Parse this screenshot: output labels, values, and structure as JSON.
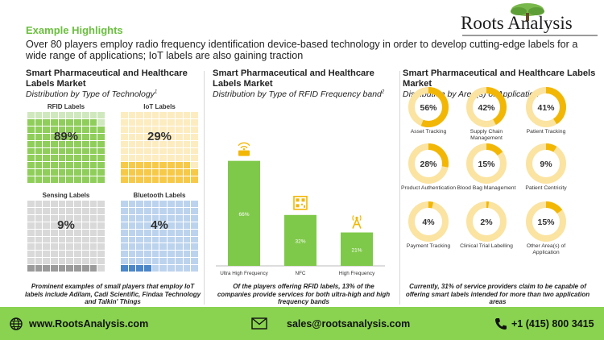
{
  "header": {
    "kicker": "Example Highlights",
    "headline": "Over 80 players employ radio frequency identification device-based technology in order to develop cutting-edge labels for a wide range of applications; IoT labels are also gaining traction"
  },
  "logo": {
    "text": "Roots Analysis",
    "icon": "tree-icon"
  },
  "panel1": {
    "title": "Smart Pharmaceutical and Healthcare Labels Market",
    "subtitle": "Distribution by Type of Technology",
    "note": "1",
    "waffles": [
      {
        "label": "RFID Labels",
        "value_text": "89%",
        "value": 89,
        "fill_color": "#8fce5a",
        "empty_color": "#cfe8bd"
      },
      {
        "label": "IoT Labels",
        "value_text": "29%",
        "value": 29,
        "fill_color": "#f7c948",
        "empty_color": "#fcecc0"
      },
      {
        "label": "Sensing Labels",
        "value_text": "9%",
        "value": 9,
        "fill_color": "#9a9a9a",
        "empty_color": "#d9d9d9"
      },
      {
        "label": "Bluetooth  Labels",
        "value_text": "4%",
        "value": 4,
        "fill_color": "#4a86c8",
        "empty_color": "#bcd3ee"
      }
    ],
    "footnote": "Prominent examples of small players that employ IoT labels include Adilam, Cadi Scientific, Findaa Technology and Talkin' Things"
  },
  "panel2": {
    "title": "Smart Pharmaceutical and Healthcare Labels Market",
    "subtitle": "Distribution by Type of RFID Frequency band",
    "note": "2",
    "footnote": "Of the players offering RFID labels, 13% of the companies provide services for both ultra-high and high frequency bands"
  },
  "chart_data": {
    "type": "bar",
    "categories": [
      "Ultra High Frequency",
      "NFC",
      "High Frequency"
    ],
    "values": [
      66,
      32,
      21
    ],
    "value_labels": [
      "66%",
      "32%",
      "21%"
    ],
    "icons": [
      "rfid-tag-icon",
      "qr-code-icon",
      "antenna-tower-icon"
    ],
    "ylim": [
      0,
      80
    ],
    "bar_color": "#7fc94a",
    "icon_color": "#f2b705",
    "grid": false
  },
  "panel3": {
    "title": "Smart Pharmaceutical and Healthcare Labels Market",
    "subtitle": "Distribution by Area(s) of Application",
    "note": "3",
    "donuts": [
      {
        "label": "Asset Tracking",
        "value_text": "56%",
        "value": 56
      },
      {
        "label": "Supply Chain Management",
        "value_text": "42%",
        "value": 42
      },
      {
        "label": "Patient Tracking",
        "value_text": "41%",
        "value": 41
      },
      {
        "label": "Product Authentication",
        "value_text": "28%",
        "value": 28
      },
      {
        "label": "Blood Bag Management",
        "value_text": "15%",
        "value": 15
      },
      {
        "label": "Patient Centricity",
        "value_text": "9%",
        "value": 9
      },
      {
        "label": "Payment Tracking",
        "value_text": "4%",
        "value": 4
      },
      {
        "label": "Clinical Trial Labelling",
        "value_text": "2%",
        "value": 2
      },
      {
        "label": "Other Area(s) of Application",
        "value_text": "15%",
        "value": 15
      }
    ],
    "ring_fill_color": "#f2b705",
    "ring_empty_color": "#fbe3a1",
    "footnote": "Currently, 31% of service providers claim to be capable of offering smart labels intended for more than two application areas"
  },
  "footer": {
    "website": "www.RootsAnalysis.com",
    "email": "sales@rootsanalysis.com",
    "phone": "+1 (415) 800 3415",
    "icons": [
      "globe-icon",
      "envelope-icon",
      "phone-icon"
    ]
  }
}
